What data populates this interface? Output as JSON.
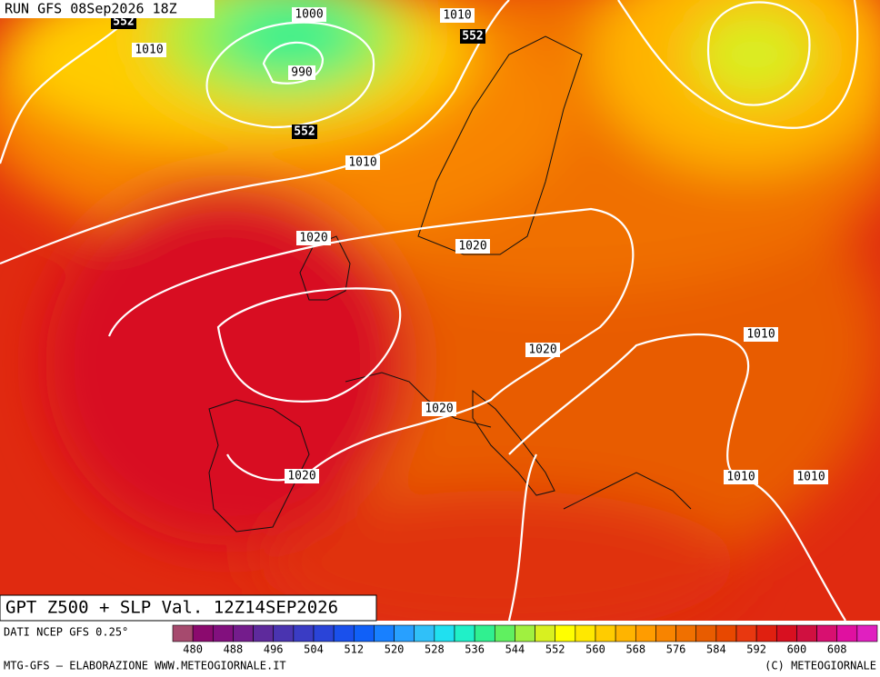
{
  "header": {
    "run": "RUN GFS 08Sep2026 18Z"
  },
  "map": {
    "isobar_labels": [
      "1000",
      "990",
      "1010",
      "1010",
      "1010",
      "1020",
      "1020",
      "1020",
      "1010",
      "1020",
      "1020",
      "1010",
      "1010"
    ],
    "height_labels": [
      "552",
      "552",
      "552"
    ]
  },
  "title": "GPT Z500 + SLP Val. 12Z14SEP2026",
  "footer": {
    "source": "DATI NCEP GFS 0.25°",
    "credit": "MTG-GFS — ELABORAZIONE WWW.METEOGIORNALE.IT",
    "copyright": "(C) METEOGIORNALE"
  },
  "colorbar": {
    "colors": [
      "#a64a6e",
      "#8b0a6e",
      "#82107e",
      "#741c8c",
      "#5e2a9c",
      "#4a34b0",
      "#3a3cc4",
      "#2a44d8",
      "#1a50ec",
      "#1060f8",
      "#1880ff",
      "#28a0ff",
      "#30c0f8",
      "#20e0f0",
      "#20f0c8",
      "#30f090",
      "#60f060",
      "#a0f040",
      "#d8f020",
      "#ffff00",
      "#ffe800",
      "#ffcc00",
      "#ffb400",
      "#ff9c00",
      "#f88400",
      "#f07000",
      "#e85c00",
      "#e84800",
      "#e83810",
      "#e02010",
      "#d81020",
      "#d01040",
      "#d81070",
      "#e010a0",
      "#e020c0"
    ],
    "labels": [
      480,
      488,
      496,
      504,
      512,
      520,
      528,
      536,
      544,
      552,
      560,
      568,
      576,
      584,
      592,
      600,
      608
    ]
  }
}
